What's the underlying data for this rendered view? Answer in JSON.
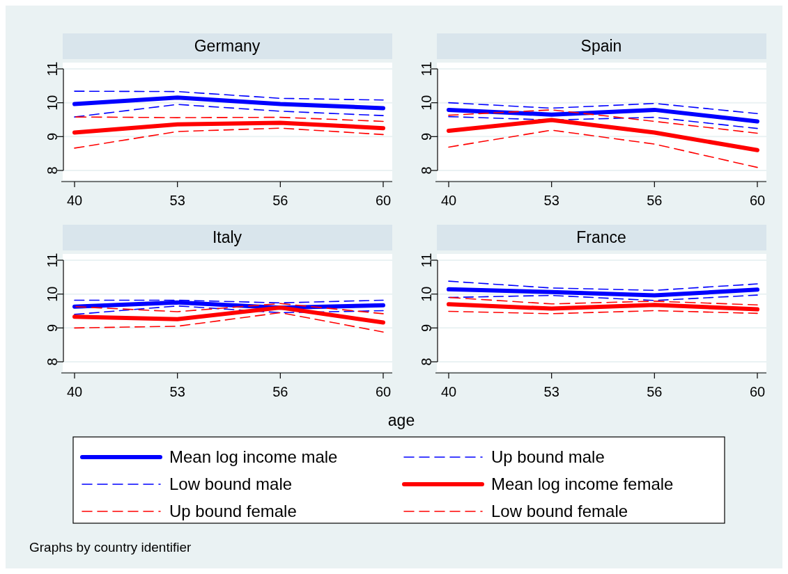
{
  "chart_data": [
    {
      "type": "line",
      "title": "Germany",
      "categories": [
        "40",
        "53",
        "56",
        "60"
      ],
      "ylim": [
        8,
        11
      ],
      "yticks": [
        8,
        9,
        10,
        11
      ],
      "grid": "y",
      "marker": "none",
      "legend": "bottom",
      "series": [
        {
          "name": "Mean log income male",
          "color": "#0000ff",
          "line_style": "solid",
          "values": [
            9.96,
            10.15,
            9.96,
            9.84
          ]
        },
        {
          "name": "Up bound male",
          "color": "#0000ff",
          "line_style": "dashed",
          "values": [
            10.34,
            10.33,
            10.13,
            10.08
          ]
        },
        {
          "name": "Low bound male",
          "color": "#0000ff",
          "line_style": "dashed",
          "values": [
            9.58,
            9.95,
            9.75,
            9.62
          ]
        },
        {
          "name": "Mean log income female",
          "color": "#ff0000",
          "line_style": "solid",
          "values": [
            9.12,
            9.36,
            9.41,
            9.25
          ]
        },
        {
          "name": "Up bound female",
          "color": "#ff0000",
          "line_style": "dashed",
          "values": [
            9.58,
            9.56,
            9.57,
            9.45
          ]
        },
        {
          "name": "Low bound female",
          "color": "#ff0000",
          "line_style": "dashed",
          "values": [
            8.66,
            9.15,
            9.25,
            9.06
          ]
        }
      ]
    },
    {
      "type": "line",
      "title": "Spain",
      "categories": [
        "40",
        "53",
        "56",
        "60"
      ],
      "ylim": [
        8,
        11
      ],
      "yticks": [
        8,
        9,
        10,
        11
      ],
      "grid": "y",
      "marker": "none",
      "series": [
        {
          "name": "Mean log income male",
          "color": "#0000ff",
          "line_style": "solid",
          "values": [
            9.79,
            9.65,
            9.79,
            9.45
          ]
        },
        {
          "name": "Up bound male",
          "color": "#0000ff",
          "line_style": "dashed",
          "values": [
            10.0,
            9.84,
            9.98,
            9.68
          ]
        },
        {
          "name": "Low bound male",
          "color": "#0000ff",
          "line_style": "dashed",
          "values": [
            9.59,
            9.49,
            9.57,
            9.24
          ]
        },
        {
          "name": "Mean log income female",
          "color": "#ff0000",
          "line_style": "solid",
          "values": [
            9.17,
            9.49,
            9.12,
            8.6
          ]
        },
        {
          "name": "Up bound female",
          "color": "#ff0000",
          "line_style": "dashed",
          "values": [
            9.63,
            9.79,
            9.45,
            9.1
          ]
        },
        {
          "name": "Low bound female",
          "color": "#ff0000",
          "line_style": "dashed",
          "values": [
            8.69,
            9.19,
            8.78,
            8.09
          ]
        }
      ]
    },
    {
      "type": "line",
      "title": "Italy",
      "categories": [
        "40",
        "53",
        "56",
        "60"
      ],
      "ylim": [
        8,
        11
      ],
      "yticks": [
        8,
        9,
        10,
        11
      ],
      "grid": "y",
      "marker": "none",
      "series": [
        {
          "name": "Mean log income male",
          "color": "#0000ff",
          "line_style": "solid",
          "values": [
            9.63,
            9.75,
            9.6,
            9.67
          ]
        },
        {
          "name": "Up bound male",
          "color": "#0000ff",
          "line_style": "dashed",
          "values": [
            9.82,
            9.82,
            9.74,
            9.82
          ]
        },
        {
          "name": "Low bound male",
          "color": "#0000ff",
          "line_style": "dashed",
          "values": [
            9.4,
            9.65,
            9.45,
            9.51
          ]
        },
        {
          "name": "Mean log income female",
          "color": "#ff0000",
          "line_style": "solid",
          "values": [
            9.33,
            9.26,
            9.6,
            9.16
          ]
        },
        {
          "name": "Up bound female",
          "color": "#ff0000",
          "line_style": "dashed",
          "values": [
            9.63,
            9.48,
            9.72,
            9.42
          ]
        },
        {
          "name": "Low bound female",
          "color": "#ff0000",
          "line_style": "dashed",
          "values": [
            9.0,
            9.05,
            9.45,
            8.88
          ]
        }
      ]
    },
    {
      "type": "line",
      "title": "France",
      "categories": [
        "40",
        "53",
        "56",
        "60"
      ],
      "ylim": [
        8,
        11
      ],
      "yticks": [
        8,
        9,
        10,
        11
      ],
      "grid": "y",
      "marker": "none",
      "xlabel": "age",
      "annotations": [
        "Graphs by country identifier"
      ],
      "series": [
        {
          "name": "Mean log income male",
          "color": "#0000ff",
          "line_style": "solid",
          "values": [
            10.14,
            10.06,
            9.96,
            10.13
          ]
        },
        {
          "name": "Up bound male",
          "color": "#0000ff",
          "line_style": "dashed",
          "values": [
            10.38,
            10.18,
            10.11,
            10.3
          ]
        },
        {
          "name": "Low bound male",
          "color": "#0000ff",
          "line_style": "dashed",
          "values": [
            9.9,
            9.96,
            9.81,
            9.97
          ]
        },
        {
          "name": "Mean log income female",
          "color": "#ff0000",
          "line_style": "solid",
          "values": [
            9.7,
            9.57,
            9.68,
            9.55
          ]
        },
        {
          "name": "Up bound female",
          "color": "#ff0000",
          "line_style": "dashed",
          "values": [
            9.9,
            9.71,
            9.79,
            9.68
          ]
        },
        {
          "name": "Low bound female",
          "color": "#ff0000",
          "line_style": "dashed",
          "values": [
            9.49,
            9.42,
            9.51,
            9.43
          ]
        }
      ]
    }
  ]
}
